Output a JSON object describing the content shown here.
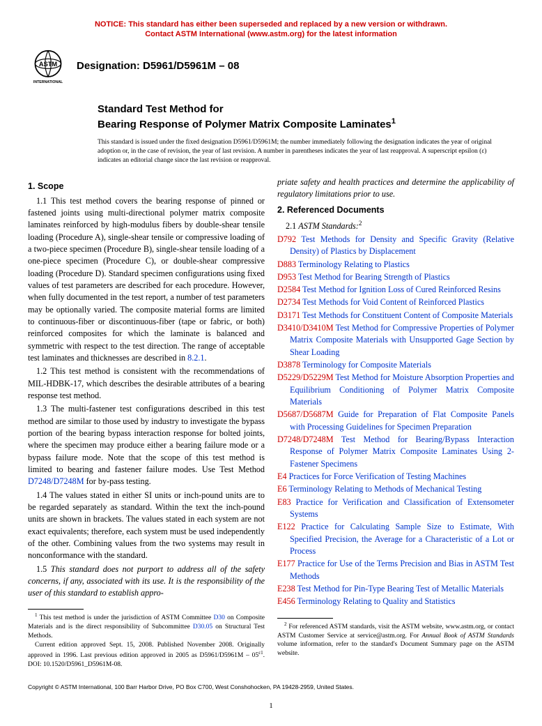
{
  "notice": {
    "line1": "NOTICE: This standard has either been superseded and replaced by a new version or withdrawn.",
    "line2": "Contact ASTM International (www.astm.org) for the latest information"
  },
  "designation": "Designation: D5961/D5961M – 08",
  "logo_text": "ASTM INTERNATIONAL",
  "title_pre": "Standard Test Method for",
  "title_main": "Bearing Response of Polymer Matrix Composite Laminates",
  "title_sup": "1",
  "issued_note": "This standard is issued under the fixed designation D5961/D5961M; the number immediately following the designation indicates the year of original adoption or, in the case of revision, the year of last revision. A number in parentheses indicates the year of last reapproval. A superscript epsilon (ε) indicates an editorial change since the last revision or reapproval.",
  "sections": {
    "scope_head": "1. Scope",
    "p11": "1.1 This test method covers the bearing response of pinned or fastened joints using multi-directional polymer matrix composite laminates reinforced by high-modulus fibers by double-shear tensile loading (Procedure A), single-shear tensile or compressive loading of a two-piece specimen (Procedure B), single-shear tensile loading of a one-piece specimen (Procedure C), or double-shear compressive loading (Procedure D). Standard specimen configurations using fixed values of test parameters are described for each procedure. However, when fully documented in the test report, a number of test parameters may be optionally varied. The composite material forms are limited to continuous-fiber or discontinuous-fiber (tape or fabric, or both) reinforced composites for which the laminate is balanced and symmetric with respect to the test direction. The range of acceptable test laminates and thicknesses are described in ",
    "p11_link": "8.2.1",
    "p11_tail": ".",
    "p12": "1.2 This test method is consistent with the recommendations of MIL-HDBK-17, which describes the desirable attributes of a bearing response test method.",
    "p13a": "1.3 The multi-fastener test configurations described in this test method are similar to those used by industry to investigate the bypass portion of the bearing bypass interaction response for bolted joints, where the specimen may produce either a bearing failure mode or a bypass failure mode. Note that the scope of this test method is limited to bearing and fastener failure modes. Use Test Method ",
    "p13_link": "D7248/D7248M",
    "p13b": " for by-pass testing.",
    "p14": "1.4 The values stated in either SI units or inch-pound units are to be regarded separately as standard. Within the text the inch-pound units are shown in brackets. The values stated in each system are not exact equivalents; therefore, each system must be used independently of the other. Combining values from the two systems may result in nonconformance with the standard.",
    "p15a": "1.5 ",
    "p15b": "This standard does not purport to address all of the safety concerns, if any, associated with its use. It is the responsibility of the user of this standard to establish appro-",
    "p15c": "priate safety and health practices and determine the applicability of regulatory limitations prior to use.",
    "refdocs_head": "2. Referenced Documents",
    "p21_num": "2.1 ",
    "p21_ital": "ASTM Standards:",
    "p21_sup": "2"
  },
  "refs": [
    {
      "code": "D792",
      "text": "Test Methods for Density and Specific Gravity (Relative Density) of Plastics by Displacement"
    },
    {
      "code": "D883",
      "text": "Terminology Relating to Plastics"
    },
    {
      "code": "D953",
      "text": "Test Method for Bearing Strength of Plastics"
    },
    {
      "code": "D2584",
      "text": "Test Method for Ignition Loss of Cured Reinforced Resins"
    },
    {
      "code": "D2734",
      "text": "Test Methods for Void Content of Reinforced Plastics"
    },
    {
      "code": "D3171",
      "text": "Test Methods for Constituent Content of Composite Materials"
    },
    {
      "code": "D3410/D3410M",
      "text": "Test Method for Compressive Properties of Polymer Matrix Composite Materials with Unsupported Gage Section by Shear Loading"
    },
    {
      "code": "D3878",
      "text": "Terminology for Composite Materials"
    },
    {
      "code": "D5229/D5229M",
      "text": "Test Method for Moisture Absorption Properties and Equilibrium Conditioning of Polymer Matrix Composite Materials"
    },
    {
      "code": "D5687/D5687M",
      "text": "Guide for Preparation of Flat Composite Panels with Processing Guidelines for Specimen Preparation"
    },
    {
      "code": "D7248/D7248M",
      "text": "Test Method for Bearing/Bypass Interaction Response of Polymer Matrix Composite Laminates Using 2-Fastener Specimens"
    },
    {
      "code": "E4",
      "text": "Practices for Force Verification of Testing Machines"
    },
    {
      "code": "E6",
      "text": "Terminology Relating to Methods of Mechanical Testing"
    },
    {
      "code": "E83",
      "text": "Practice for Verification and Classification of Extensometer Systems"
    },
    {
      "code": "E122",
      "text": "Practice for Calculating Sample Size to Estimate, With Specified Precision, the Average for a Characteristic of a Lot or Process"
    },
    {
      "code": "E177",
      "text": "Practice for Use of the Terms Precision and Bias in ASTM Test Methods"
    },
    {
      "code": "E238",
      "text": "Test Method for Pin-Type Bearing Test of Metallic Materials"
    },
    {
      "code": "E456",
      "text": "Terminology Relating to Quality and Statistics"
    }
  ],
  "footnotes": {
    "f1a": "This test method is under the jurisdiction of ASTM Committee ",
    "f1_link1": "D30",
    "f1b": " on Composite Materials and is the direct responsibility of Subcommittee ",
    "f1_link2": "D30.05",
    "f1c": " on Structural Test Methods.",
    "f1d": "Current edition approved Sept. 15, 2008. Published November 2008. Originally approved in 1996. Last previous edition approved in 2005 as D5961/D5961M – 05",
    "f1_eps": "ε1",
    "f1e": ". DOI: 10.1520/D5961_D5961M-08.",
    "f2a": "For referenced ASTM standards, visit the ASTM website, www.astm.org, or contact ASTM Customer Service at service@astm.org. For ",
    "f2_ital": "Annual Book of ASTM Standards",
    "f2b": " volume information, refer to the standard's Document Summary page on the ASTM website."
  },
  "copyright": "Copyright © ASTM International, 100 Barr Harbor Drive, PO Box C700, West Conshohocken, PA 19428-2959, United States.",
  "page_number": "1",
  "colors": {
    "notice_red": "#cc0000",
    "link_blue": "#0033cc",
    "ref_red": "#cc0000",
    "text_black": "#000000",
    "bg": "#ffffff"
  }
}
